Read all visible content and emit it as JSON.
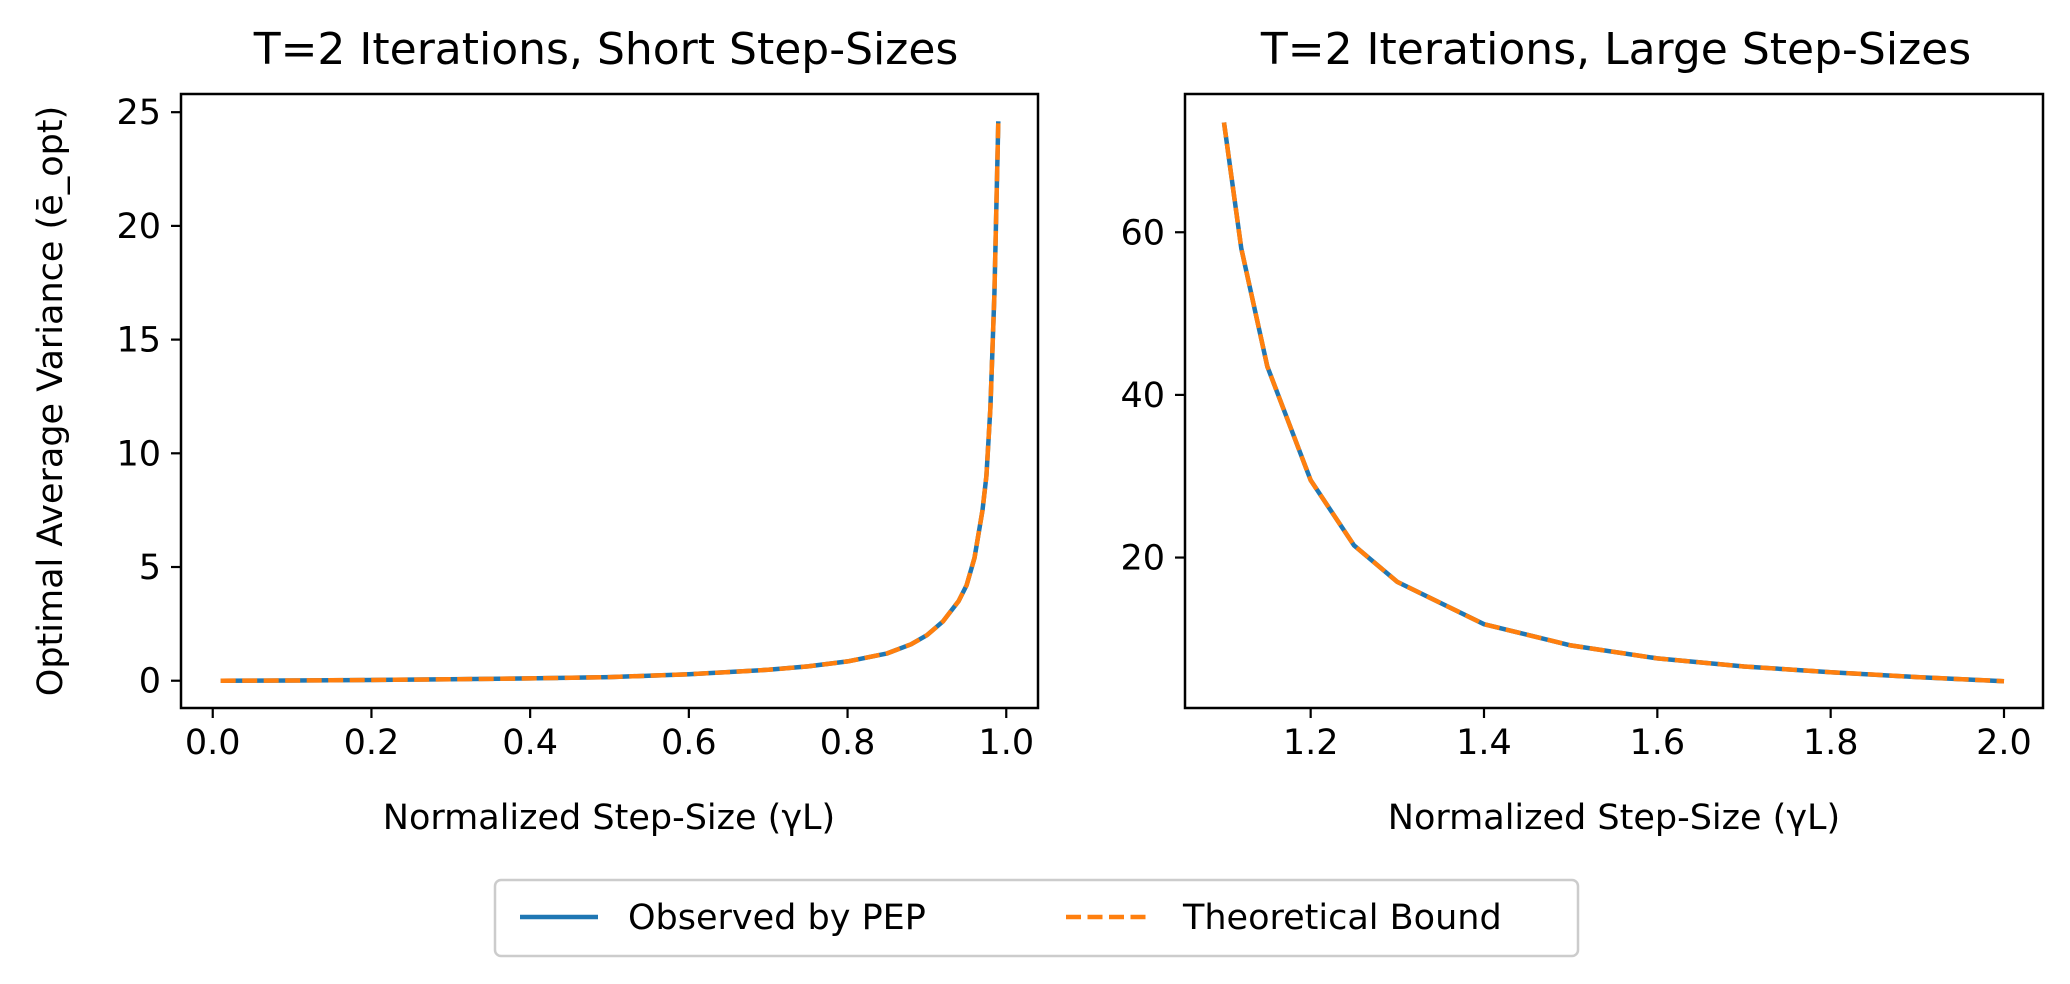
{
  "colors": {
    "observed": "#1f77b4",
    "theoretical": "#ff7f0e"
  },
  "legend": {
    "observed_label": "Observed by PEP",
    "theoretical_label": "Theoretical Bound"
  },
  "chart_data": [
    {
      "type": "line",
      "title": "T=2 Iterations, Short Step-Sizes",
      "xlabel": "Normalized Step-Size (γL)",
      "ylabel": "Optimal Average Variance (ē_opt)",
      "xlim": [
        -0.04,
        1.04
      ],
      "ylim": [
        -1.2,
        25.8
      ],
      "xticks": [
        0.0,
        0.2,
        0.4,
        0.6,
        0.8,
        1.0
      ],
      "xtick_labels": [
        "0.0",
        "0.2",
        "0.4",
        "0.6",
        "0.8",
        "1.0"
      ],
      "yticks": [
        0,
        5,
        10,
        15,
        20,
        25
      ],
      "ytick_labels": [
        "0",
        "5",
        "10",
        "15",
        "20",
        "25"
      ],
      "series": [
        {
          "name": "Observed by PEP",
          "x": [
            0.01,
            0.1,
            0.2,
            0.3,
            0.4,
            0.5,
            0.6,
            0.7,
            0.75,
            0.8,
            0.85,
            0.88,
            0.9,
            0.92,
            0.94,
            0.95,
            0.96,
            0.97,
            0.975,
            0.98,
            0.985,
            0.99
          ],
          "y": [
            0.0,
            0.01,
            0.03,
            0.06,
            0.1,
            0.16,
            0.28,
            0.48,
            0.63,
            0.85,
            1.2,
            1.6,
            2.0,
            2.6,
            3.5,
            4.2,
            5.4,
            7.5,
            9.0,
            12.0,
            17.0,
            24.6
          ]
        },
        {
          "name": "Theoretical Bound",
          "x": [
            0.01,
            0.1,
            0.2,
            0.3,
            0.4,
            0.5,
            0.6,
            0.7,
            0.75,
            0.8,
            0.85,
            0.88,
            0.9,
            0.92,
            0.94,
            0.95,
            0.96,
            0.97,
            0.975,
            0.98,
            0.985,
            0.99
          ],
          "y": [
            0.0,
            0.01,
            0.03,
            0.06,
            0.1,
            0.16,
            0.28,
            0.48,
            0.63,
            0.85,
            1.2,
            1.6,
            2.0,
            2.6,
            3.5,
            4.2,
            5.4,
            7.5,
            9.0,
            12.0,
            17.0,
            24.6
          ]
        }
      ]
    },
    {
      "type": "line",
      "title": "T=2 Iterations, Large Step-Sizes",
      "xlabel": "Normalized Step-Size (γL)",
      "ylabel": "",
      "xlim": [
        1.055,
        2.045
      ],
      "ylim": [
        1.5,
        77.0
      ],
      "xticks": [
        1.2,
        1.4,
        1.6,
        1.8,
        2.0
      ],
      "xtick_labels": [
        "1.2",
        "1.4",
        "1.6",
        "1.8",
        "2.0"
      ],
      "yticks": [
        20,
        40,
        60
      ],
      "ytick_labels": [
        "20",
        "40",
        "60"
      ],
      "series": [
        {
          "name": "Observed by PEP",
          "x": [
            1.1,
            1.12,
            1.15,
            1.2,
            1.25,
            1.3,
            1.4,
            1.5,
            1.6,
            1.7,
            1.8,
            1.9,
            2.0
          ],
          "y": [
            73.5,
            58.0,
            43.5,
            29.5,
            21.5,
            17.0,
            11.8,
            9.2,
            7.6,
            6.6,
            5.9,
            5.3,
            4.8
          ]
        },
        {
          "name": "Theoretical Bound",
          "x": [
            1.1,
            1.12,
            1.15,
            1.2,
            1.25,
            1.3,
            1.4,
            1.5,
            1.6,
            1.7,
            1.8,
            1.9,
            2.0
          ],
          "y": [
            73.5,
            58.0,
            43.5,
            29.5,
            21.5,
            17.0,
            11.8,
            9.2,
            7.6,
            6.6,
            5.9,
            5.3,
            4.8
          ]
        }
      ]
    }
  ]
}
